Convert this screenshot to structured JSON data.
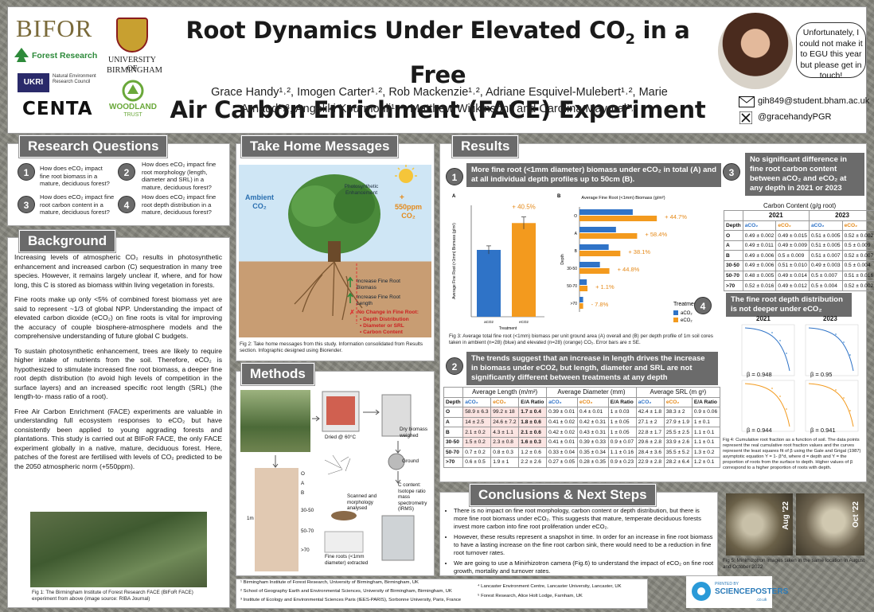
{
  "logos": {
    "bifor": "BIFOR",
    "forest_research": "Forest Research",
    "ukri": "UKRI",
    "nerc": "Natural Environment Research Council",
    "centa": "CENTA",
    "birmingham_1": "UNIVERSITY OF",
    "birmingham_2": "BIRMINGHAM",
    "woodland": "WOODLAND",
    "woodland_sub": "TRUST"
  },
  "title": {
    "line1a": "Root Dynamics Under Elevated CO",
    "line1sub": "2",
    "line1b": " in a Free",
    "line2": "Air Carbon Enrichment (FACE) Experiment"
  },
  "authors": {
    "line1": "Grace Handy¹˒², Imogen Carter¹˒²,  Rob Mackenzie¹˒², Adriane Esquivel-Mulebert¹˒², Marie",
    "line2": "Arnaud¹˒³, Angeliki Kourmouli¹˒⁴, Matthew Wilikinson⁵ and Carolina Mayoral¹˒²"
  },
  "bubble": "Unfortunately, I could not make it to EGU this year but please get in touch!",
  "contact": {
    "email": "gih849@student.bham.ac.uk",
    "handle": "@gracehandyPGR"
  },
  "research_questions": {
    "title": "Research Questions",
    "items": [
      {
        "num": "1",
        "text": "How does eCO₂ impact fine root biomass in a mature, deciduous forest?"
      },
      {
        "num": "2",
        "text": "How does eCO₂ impact fine root morphology (length, diameter and SRL) in a mature, deciduous forest?"
      },
      {
        "num": "3",
        "text": "How does eCO₂ impact fine root carbon content in a mature, deciduous forest?"
      },
      {
        "num": "4",
        "text": "How does eCO₂ impact fine root depth distribution in a mature, deciduous forest?"
      }
    ]
  },
  "background": {
    "title": "Background",
    "p1": "Increasing levels of atmospheric CO₂ results in photosynthetic enhancement and increased carbon (C) sequestration in many tree species. However, it remains largely unclear if, where, and for how long, this C is stored as biomass within living vegetation in forests.",
    "p2": "Fine roots make up only <5% of combined forest biomass yet are said to represent ~1/3 of global NPP. Understanding the impact of elevated carbon dioxide (eCO₂) on fine roots is vital for improving the accuracy of couple biosphere-atmosphere models and the comprehensive understanding of future global C budgets.",
    "p3": "To sustain photosynthetic enhancement, trees are likely to require higher intake of nutrients from the soil. Therefore, eCO₂ is hypothesized to stimulate increased fine root biomass, a deeper fine root depth distribution (to avoid high levels of competition in the surface layers) and an increased specific root length (SRL) (the length-to- mass ratio of a root).",
    "p4": "Free Air Carbon Enrichment (FACE) experiments are valuable in understanding full ecosystem responses to eCO₂ but have consistently been applied to young aggrading forests and plantations. This study is carried out at BIFoR FACE, the only FACE experiment globally in a native, mature, deciduous forest. Here, patches of the forest are fertilised with levels of CO₂ predicted to be the 2050 atmospheric norm (+550ppm).",
    "fig1": "Fig 1: The Birmingham Institute of Forest Research FACE (BIFoR FACE) experiment from above (image source: RIBA Journal)"
  },
  "take_home": {
    "title": "Take Home Messages",
    "ambient": "Ambient CO₂",
    "elevated_plus": "+",
    "elevated": "550ppm CO₂",
    "photo_enh": "Photosynthetic Enhancement",
    "inc_biomass": "Increase Fine Root Biomass",
    "inc_length": "Increase Fine Root Length",
    "no_change": "No Change in Fine Root:",
    "nc1": "• Depth Distribution",
    "nc2": "• Diameter or SRL",
    "nc3": "• Carbon Content",
    "fig2": "Fig 2: Take home messages from this study. Information consolidated from Results section. Infographic designed using Biorender."
  },
  "methods": {
    "title": "Methods",
    "dried": "Dried @ 60°C",
    "dry_weighed": "Dry biomass weighed",
    "ground": "Ground",
    "c_content": "C content: Isotope ratio mass spectrometry (IRMS)",
    "scanned": "Scanned and morphology analysed",
    "roots_extracted": "Fine roots (<1mm diameter) extracted",
    "depths": [
      "O",
      "A",
      "B",
      "30-50",
      "50-70",
      ">70"
    ],
    "depth_scale": "1m"
  },
  "results": {
    "title": "Results",
    "r1": "More fine root (<1mm diameter) biomass under eCO₂ in total (A) and at all individual depth profiles up to 50cm (B).",
    "r2": "The trends suggest that an increase in length drives the increase in biomass under eCO2, but length, diameter and SRL are not significantly different between treatments at any depth",
    "r3": "No significant difference in fine root carbon content between aCO₂ and eCO₂ at any depth in 2021 or 2023",
    "r4": "The fine root depth distribution is not deeper under eCO₂",
    "fig3": "Fig 3: Average total fine root (<1mm) biomass per unit ground area (A) overall and (B) per depth profile of 1m soil cores taken in ambient (n=28) (blue) and elevated (n=28) (orange) CO₂. Error bars are ± SE.",
    "fig4": "Fig 4: Cumulative root fraction as a function of soil. The data points represent the real cumulative root fraction values and the curves represent the least squares fit of β using the Gale and Grigal (1987) asymptotic equation Y = 1- β^d, where d = depth and Y = the proportion of roots from the surface to depth. Higher values of β correspond to a higher proportion of roots with depth.",
    "y2021": "2021",
    "y2023": "2023",
    "betas": [
      "β = 0.948",
      "β = 0.95",
      "β = 0.944",
      "β = 0.941"
    ]
  },
  "chart_data": [
    {
      "type": "bar",
      "panel": "A",
      "categories": [
        "aCO2",
        "eCO2"
      ],
      "values": [
        132,
        185
      ],
      "errors": [
        8,
        12
      ],
      "annotation": "+ 40.5%",
      "ylabel": "Average Fine Root (<1mm) Biomass (g/m²)",
      "xlabel": "Treatment",
      "ylim": [
        0,
        220
      ],
      "colors": [
        "#2f73c7",
        "#f39a1e"
      ]
    },
    {
      "type": "bar",
      "panel": "B",
      "title": "Average Fine Root (<1mm) Biomass (g/m²)",
      "categories": [
        "O",
        "A",
        "B",
        "30-50",
        "50-70",
        ">70"
      ],
      "ylabel": "Depth",
      "series": [
        {
          "name": "aCO₂",
          "values": [
            73,
            50,
            40,
            28,
            10,
            5
          ]
        },
        {
          "name": "eCO₂",
          "values": [
            106,
            79,
            56,
            41,
            11,
            5
          ]
        }
      ],
      "annotations": [
        "+ 44.7%",
        "+ 58.4%",
        "+ 38.1%",
        "+ 44.8%",
        "+ 1.1%",
        "- 7.8%"
      ],
      "legend_title": "Treatment",
      "xlim": [
        0,
        120
      ],
      "colors": [
        "#2f73c7",
        "#f39a1e"
      ]
    }
  ],
  "morph_table": {
    "groups": [
      "Average Length (m/m²)",
      "Average Diameter (mm)",
      "Average SRL (m g¹)"
    ],
    "headers": [
      "Depth",
      "aCO₂",
      "eCO₂",
      "E/A Ratio",
      "aCO₂",
      "eCO₂",
      "E/A Ratio",
      "aCO₂",
      "eCO₂",
      "E/A Ratio"
    ],
    "rows": [
      [
        "O",
        "58.9 ± 6.3",
        "99.2 ± 18",
        "1.7 ± 0.4",
        "0.39 ± 0.01",
        "0.4 ± 0.01",
        "1 ± 0.03",
        "42.4 ± 1.8",
        "38.3 ± 2",
        "0.9 ± 0.06"
      ],
      [
        "A",
        "14 ± 2.5",
        "24.6 ± 7.2",
        "1.8 ± 0.6",
        "0.41 ± 0.02",
        "0.42 ± 0.31",
        "1 ± 0.05",
        "27.1 ± 2",
        "27.9 ± 1.9",
        "1 ± 0.1"
      ],
      [
        "B",
        "2.1 ± 0.2",
        "4.3 ± 1.1",
        "2.1 ± 0.6",
        "0.42 ± 0.02",
        "0.43 ± 0.31",
        "1 ± 0.05",
        "22.8 ± 1.7",
        "25.5 ± 2.5",
        "1.1 ± 0.1"
      ],
      [
        "30-50",
        "1.5 ± 0.2",
        "2.3 ± 0.8",
        "1.6 ± 0.3",
        "0.41 ± 0.01",
        "0.39 ± 0.33",
        "0.9 ± 0.07",
        "29.6 ± 2.8",
        "33.9 ± 2.6",
        "1.1 ± 0.1"
      ],
      [
        "50-70",
        "0.7 ± 0.2",
        "0.8 ± 0.3",
        "1.2 ± 0.6",
        "0.33 ± 0.04",
        "0.35 ± 0.34",
        "1.1 ± 0.16",
        "28.4 ± 3.6",
        "35.5 ± 5.2",
        "1.3 ± 0.2"
      ],
      [
        ">70",
        "0.6 ± 0.5",
        "1.9 ± 1",
        "2.2 ± 2.6",
        "0.27 ± 0.05",
        "0.28 ± 0.35",
        "0.9 ± 0.23",
        "22.9 ± 2.8",
        "28.2 ± 6.4",
        "1.2 ± 0.1"
      ]
    ]
  },
  "carbon_table": {
    "title": "Carbon Content (g/g root)",
    "years": [
      "2021",
      "2023"
    ],
    "headers": [
      "Depth",
      "aCO₂",
      "eCO₂",
      "aCO₂",
      "eCO₂"
    ],
    "rows": [
      [
        "O",
        "0.49 ± 0.002",
        "0.49 ± 0.015",
        "0.51 ± 0.005",
        "0.52 ± 0.002"
      ],
      [
        "A",
        "0.49 ± 0.011",
        "0.49 ± 0.009",
        "0.51 ± 0.005",
        "0.5 ± 0.009"
      ],
      [
        "B",
        "0.49 ± 0.006",
        "0.5 ± 0.009",
        "0.51 ± 0.007",
        "0.52 ± 0.007"
      ],
      [
        "30-50",
        "0.49 ± 0.006",
        "0.51 ± 0.010",
        "0.49 ± 0.003",
        "0.5 ± 0.004"
      ],
      [
        "50-70",
        "0.48 ± 0.005",
        "0.49 ± 0.014",
        "0.5 ± 0.007",
        "0.51 ± 0.016"
      ],
      [
        ">70",
        "0.52 ± 0.016",
        "0.49 ± 0.012",
        "0.5 ± 0.004",
        "0.52 ± 0.002"
      ]
    ]
  },
  "conclusions": {
    "title": "Conclusions & Next Steps",
    "items": [
      "There is no impact on fine root morphology, carbon content or depth distribution, but there is more fine root biomass under eCO₂. This suggests that mature, temperate deciduous forests invest more carbon into fine root proliferation under eCO₂.",
      "However, these results represent a snapshot in time. In order for an increase in fine root biomass to have a lasting increase on the fine root carbon sink, there would need to be a reduction in fine root turnover rates.",
      "We are going to use a Minirhizotron camera (Fig.6) to understand the impact of eCO₂ on fine root growth, mortality and turnover rates."
    ],
    "aug": "Aug '22",
    "oct": "Oct '22",
    "fig5": "Fig 5: Minirhizotron images taken in the same location in August and October 2022"
  },
  "affiliations": {
    "a1": "¹ Birmingham Institute of Forest Research, University of Birmingham, Birmingham, UK",
    "a2": "² School of Geography Earth and Environmental Sciences, University of Birmingham, Birmingham, UK",
    "a3": "³ Institute of Ecology and Environmental Sciences Paris (IEES-PARIS), Sorbonne University, Paris, France",
    "a4": "⁴ Lancaster Environment Centre, Lancaster University, Lancaster, UK",
    "a5": "⁵ Forest Research, Alice Holt Lodge, Farnham, UK"
  },
  "printer": {
    "line1": "PRINTED BY",
    "line2": "SCIENCEPOSTERS",
    "line3": ".co.uk"
  }
}
